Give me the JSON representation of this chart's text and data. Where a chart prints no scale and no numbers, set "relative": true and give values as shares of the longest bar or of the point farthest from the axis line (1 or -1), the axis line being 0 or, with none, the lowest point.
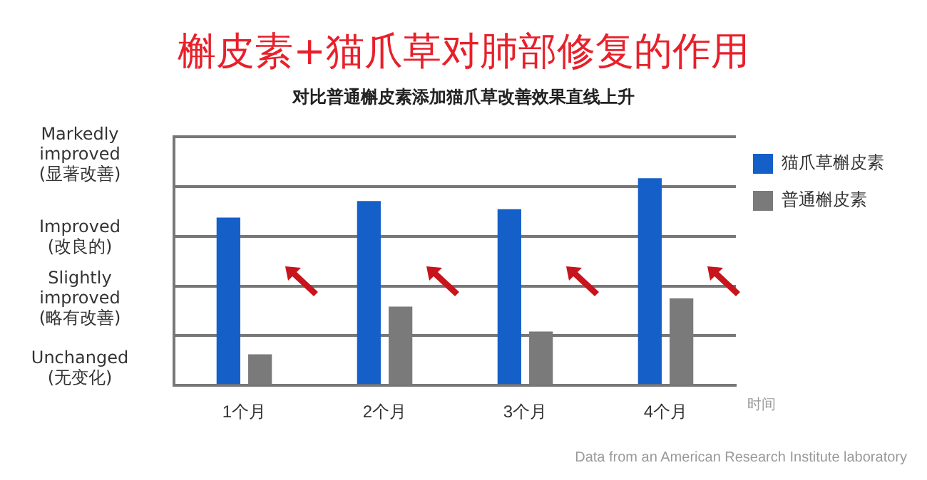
{
  "chart_data": {
    "type": "bar",
    "title": "槲皮素+猫爪草对肺部修复的作用",
    "subtitle": "对比普通槲皮素添加猫爪草改善效果直线上升",
    "xlabel": "时间",
    "categories": [
      "1个月",
      "2个月",
      "3个月",
      "4个月"
    ],
    "series": [
      {
        "name": "猫爪草槲皮素",
        "color": "#1560c8",
        "values": [
          0.81,
          0.89,
          0.85,
          1
        ]
      },
      {
        "name": "普通槲皮素",
        "color": "#7a7a7a",
        "values": [
          0.15,
          0.38,
          0.26,
          0.42
        ]
      }
    ],
    "relative": true,
    "grid": "y",
    "legend": "top right",
    "annotations": [
      "Markedly\nimproved\n(显著改善)",
      "Improved\n(改良的)",
      "Slightly\nimproved\n(略有改善)",
      "Unchanged\n(无变化)",
      "Data from an American Research Institute laboratory"
    ]
  }
}
